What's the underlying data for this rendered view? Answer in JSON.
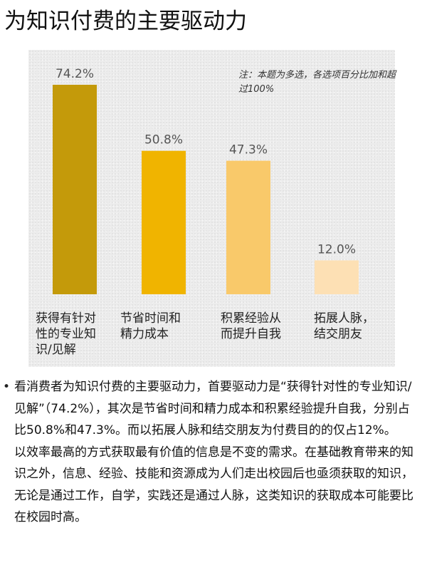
{
  "title": "为知识付费的主要驱动力",
  "note": "注：本题为多选，各选项百分比加和超过100%",
  "chart_data": {
    "type": "bar",
    "categories": [
      "获得有针对性的专业知识/见解",
      "节省时间和精力成本",
      "积累经验提升自我",
      "拓展人脉，结交朋友"
    ],
    "category_lines": [
      [
        "获得有针对",
        "性的专业知",
        "识/见解"
      ],
      [
        "节省时间和",
        "精力成本"
      ],
      [
        "积累经验从",
        "而提升自我"
      ],
      [
        "拓展人脉，",
        "结交朋友"
      ]
    ],
    "values": [
      74.2,
      50.8,
      47.3,
      12.0
    ],
    "labels": [
      "74.2%",
      "50.8%",
      "47.3%",
      "12.0%"
    ],
    "colors": [
      "#c49a0a",
      "#f0b400",
      "#f9c96a",
      "#fde0b4"
    ],
    "ylim": [
      0,
      80
    ]
  },
  "body": {
    "bullet": "•",
    "para1": "看消费者为知识付费的主要驱动力，首要驱动力是“获得针对性的专业知识/见解”（74.2%），其次是节省时间和精力成本和积累经验提升自我，分别占比50.8%和47.3%。而以拓展人脉和结交朋友为付费目的的仅占12%。",
    "para2": "以效率最高的方式获取最有价值的信息是不变的需求。在基础教育带来的知识之外，信息、经验、技能和资源成为人们走出校园后也亟须获取的知识，无论是通过工作，自学，实践还是通过人脉，这类知识的获取成本可能要比在校园时高。"
  }
}
